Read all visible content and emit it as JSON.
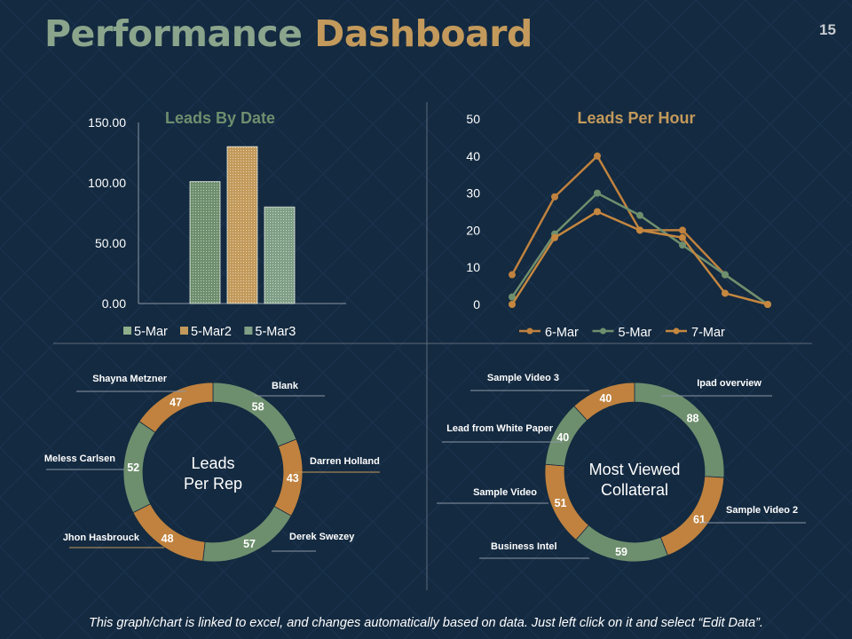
{
  "header": {
    "title_part1": "Performance",
    "title_part2": "Dashboard",
    "page_number": "15"
  },
  "footer": {
    "note": "This graph/chart is linked to excel, and changes automatically based on data. Just left click on it and select “Edit Data”."
  },
  "colors": {
    "background": "#142a40",
    "green": "#6e8f6e",
    "tan": "#c39a5b",
    "orange": "#c0823e",
    "axis_text": "#ffffff",
    "divider": "#5c6b7a"
  },
  "chart_data": [
    {
      "type": "bar",
      "title": "Leads By Date",
      "categories": [
        ""
      ],
      "series": [
        {
          "name": "5-Mar",
          "values": [
            101
          ]
        },
        {
          "name": "5-Mar2",
          "values": [
            130
          ]
        },
        {
          "name": "5-Mar3",
          "values": [
            80
          ]
        }
      ],
      "ylim": [
        0,
        150
      ],
      "yticks": [
        "0.00",
        "50.00",
        "100.00",
        "150.00"
      ],
      "legend": "bottom"
    },
    {
      "type": "line",
      "title": "Leads Per Hour",
      "x": [
        1,
        2,
        3,
        4,
        5,
        6,
        7
      ],
      "series": [
        {
          "name": "6-Mar",
          "values": [
            8,
            29,
            40,
            20,
            20,
            8,
            0
          ]
        },
        {
          "name": "5-Mar",
          "values": [
            2,
            19,
            30,
            24,
            16,
            8,
            0
          ]
        },
        {
          "name": "7-Mar",
          "values": [
            0,
            18,
            25,
            20,
            18,
            3,
            0
          ]
        }
      ],
      "ylim": [
        0,
        50
      ],
      "yticks": [
        "0",
        "10",
        "20",
        "30",
        "40",
        "50"
      ],
      "legend": "bottom"
    },
    {
      "type": "pie",
      "donut": true,
      "title": "Leads Per Rep",
      "title_lines": [
        "Leads",
        "Per Rep"
      ],
      "slices": [
        {
          "label": "Blank",
          "value": 58
        },
        {
          "label": "Darren Holland",
          "value": 43
        },
        {
          "label": "Derek Swezey",
          "value": 57
        },
        {
          "label": "Jhon Hasbrouck",
          "value": 48
        },
        {
          "label": "Meless Carlsen",
          "value": 52
        },
        {
          "label": "Shayna Metzner",
          "value": 47
        }
      ]
    },
    {
      "type": "pie",
      "donut": true,
      "title": "Most Viewed Collateral",
      "title_lines": [
        "Most Viewed",
        "Collateral"
      ],
      "slices": [
        {
          "label": "Ipad overview",
          "value": 88
        },
        {
          "label": "Sample Video 2",
          "value": 61
        },
        {
          "label": "Business Intel",
          "value": 59
        },
        {
          "label": "Sample Video",
          "value": 51
        },
        {
          "label": "Lead from White Paper",
          "value": 40
        },
        {
          "label": "Sample Video 3",
          "value": 40
        }
      ]
    }
  ]
}
